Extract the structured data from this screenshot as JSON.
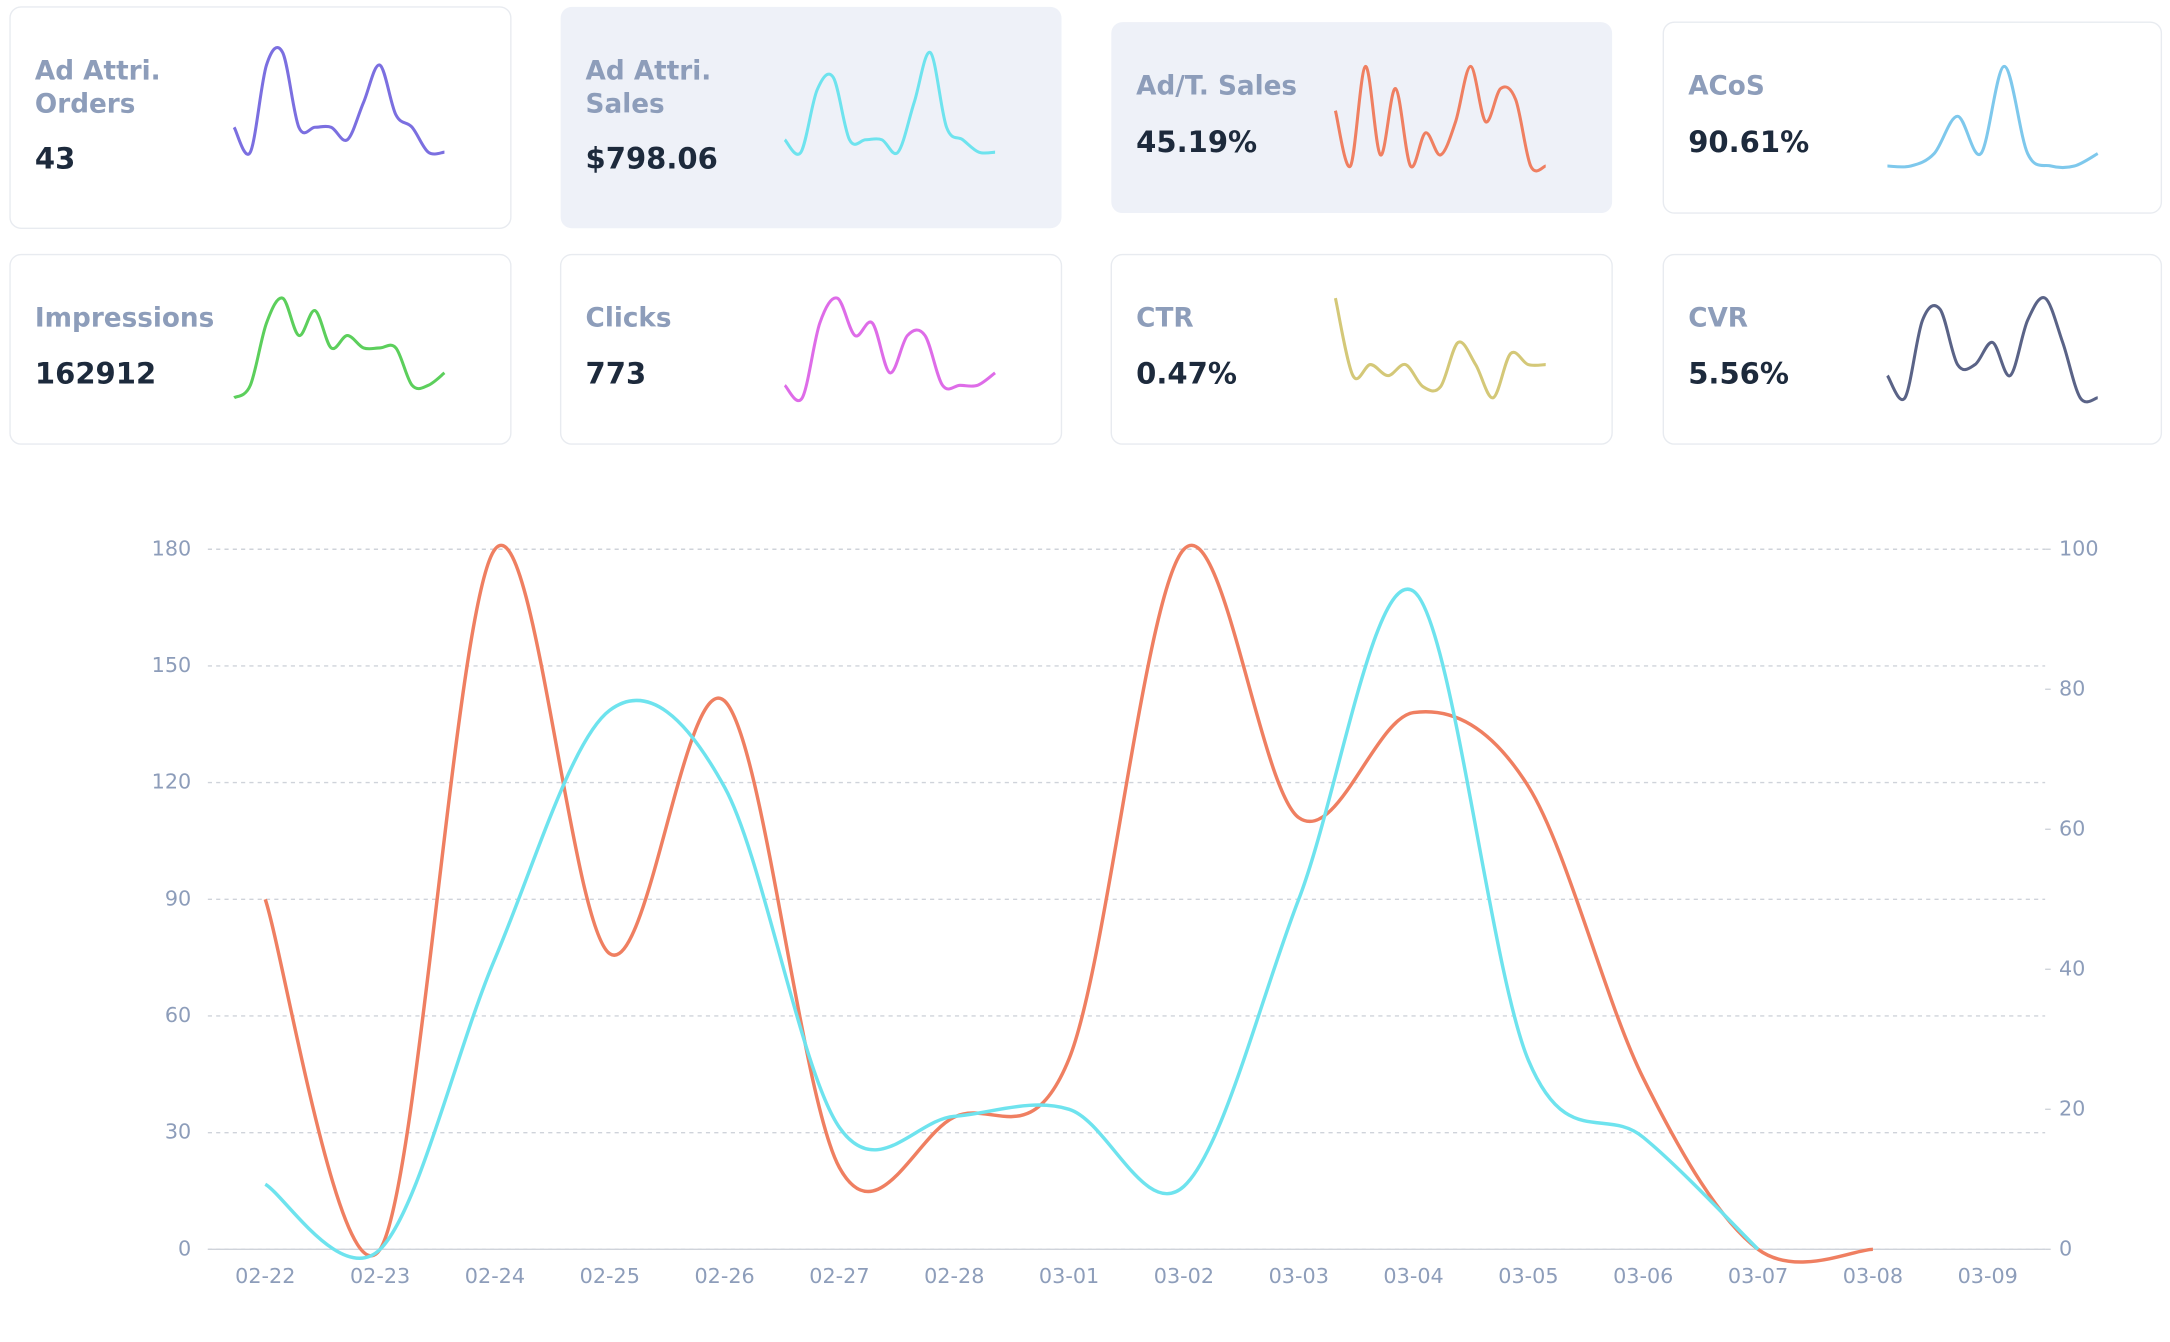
{
  "cards": [
    {
      "label": [
        "Ad Attri.",
        "Orders"
      ],
      "value": "43",
      "color": "#7b6fe0",
      "highlighted": false,
      "sparkline": [
        3,
        1,
        8,
        9,
        3,
        3,
        3,
        2,
        5,
        8,
        4,
        3,
        1,
        1
      ]
    },
    {
      "label": [
        "Ad Attri.",
        "Sales"
      ],
      "value": "$798.06",
      "color": "#6ee3ee",
      "highlighted": true,
      "sparkline": [
        2,
        1,
        6,
        7,
        2,
        2,
        2,
        1,
        5,
        9,
        3,
        2,
        1,
        1
      ]
    },
    {
      "label": [
        "Ad/T. Sales"
      ],
      "value": "45.19%",
      "color": "#ef7f61",
      "highlighted": true,
      "sparkline": [
        5,
        0,
        9,
        1,
        7,
        0,
        3,
        1,
        4,
        9,
        4,
        7,
        6,
        0,
        0
      ]
    },
    {
      "label": [
        "ACoS"
      ],
      "value": "90.61%",
      "color": "#7ec8ec",
      "highlighted": false,
      "sparkline": [
        0,
        0,
        1,
        4,
        1,
        8,
        1,
        0,
        0,
        1
      ]
    },
    {
      "label": [
        "Impressions"
      ],
      "value": "162912",
      "color": "#5ccf5c",
      "highlighted": false,
      "sparkline": [
        0,
        1,
        6,
        8,
        5,
        7,
        4,
        5,
        4,
        4,
        4,
        1,
        1,
        2
      ]
    },
    {
      "label": [
        "Clicks"
      ],
      "value": "773",
      "color": "#de6ce8",
      "highlighted": false,
      "sparkline": [
        1,
        0,
        6,
        8,
        5,
        6,
        2,
        5,
        5,
        1,
        1,
        1,
        2
      ]
    },
    {
      "label": [
        "CTR"
      ],
      "value": "0.47%",
      "color": "#d4c878",
      "highlighted": false,
      "sparkline": [
        9,
        2,
        3,
        2,
        3,
        1,
        1,
        5,
        3,
        0,
        4,
        3,
        3
      ]
    },
    {
      "label": [
        "CVR"
      ],
      "value": "5.56%",
      "color": "#5a6387",
      "highlighted": false,
      "sparkline": [
        2,
        0,
        7,
        8,
        3,
        3,
        5,
        2,
        7,
        9,
        5,
        0,
        0
      ]
    }
  ],
  "chart_data": {
    "type": "line",
    "categories": [
      "02-22",
      "02-23",
      "02-24",
      "02-25",
      "02-26",
      "02-27",
      "02-28",
      "03-01",
      "03-02",
      "03-03",
      "03-04",
      "03-05",
      "03-06",
      "03-07",
      "03-08",
      "03-09"
    ],
    "series": [
      {
        "color": "#ef7f61",
        "axis": "y",
        "values": [
          90,
          0,
          180,
          76,
          141,
          21,
          34,
          49,
          180,
          111,
          138,
          119,
          44,
          0,
          0,
          null
        ]
      },
      {
        "color": "#6ee3ee",
        "axis": "y2",
        "values": [
          9.3,
          0,
          41.5,
          77,
          66,
          17.4,
          19,
          20,
          9,
          50,
          94,
          27,
          16,
          0,
          null,
          null
        ]
      }
    ],
    "ylim": [
      0,
      180
    ],
    "yticks": [
      0,
      30,
      60,
      90,
      120,
      150,
      180
    ],
    "y2lim": [
      0,
      100
    ],
    "y2ticks": [
      0,
      20,
      40,
      60,
      80,
      100
    ],
    "grid": true
  }
}
